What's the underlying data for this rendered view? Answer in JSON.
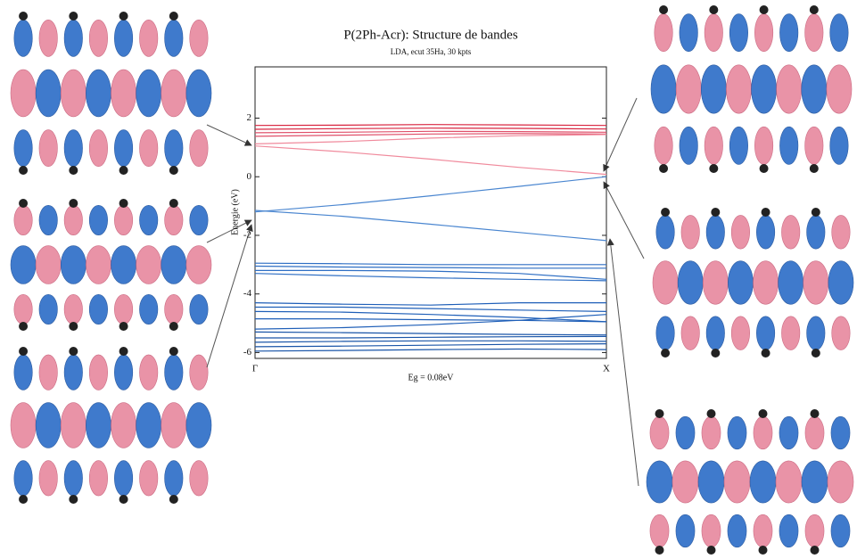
{
  "chart_data": {
    "type": "line",
    "title": "P(2Ph-Acr): Structure de bandes",
    "subtitle": "LDA, ecut 35Ha, 30 kpts",
    "y_label": "Energie (eV)",
    "x_label": "Eg = 0.08eV",
    "x": [
      0,
      0.25,
      0.5,
      0.75,
      1
    ],
    "xlim": [
      0,
      1
    ],
    "xticks": [
      {
        "value": 0,
        "label": "Γ"
      },
      {
        "value": 1,
        "label": "X"
      }
    ],
    "ylim": [
      -6.2,
      3.75
    ],
    "yticks": [
      2,
      0,
      -2,
      -4,
      -6
    ],
    "series": [
      {
        "color": "#d8243f",
        "values": [
          1.75,
          1.76,
          1.78,
          1.77,
          1.75
        ]
      },
      {
        "color": "#d8243f",
        "values": [
          1.62,
          1.64,
          1.66,
          1.65,
          1.63
        ]
      },
      {
        "color": "#e0506a",
        "values": [
          1.5,
          1.52,
          1.55,
          1.54,
          1.52
        ]
      },
      {
        "color": "#e0506a",
        "values": [
          1.38,
          1.42,
          1.46,
          1.47,
          1.46
        ]
      },
      {
        "color": "#f08a9c",
        "values": [
          1.12,
          1.2,
          1.32,
          1.4,
          1.44
        ]
      },
      {
        "color": "#f08a9c",
        "values": [
          1.05,
          0.85,
          0.6,
          0.32,
          0.08
        ]
      },
      {
        "color": "#4a86d0",
        "values": [
          -1.2,
          -0.95,
          -0.65,
          -0.33,
          0.0
        ]
      },
      {
        "color": "#4a86d0",
        "values": [
          -1.15,
          -1.35,
          -1.62,
          -1.9,
          -2.18
        ]
      },
      {
        "color": "#2f6fc4",
        "values": [
          -2.95,
          -2.97,
          -3.0,
          -3.0,
          -3.0
        ]
      },
      {
        "color": "#2f6fc4",
        "values": [
          -3.05,
          -3.08,
          -3.1,
          -3.12,
          -3.12
        ]
      },
      {
        "color": "#2f6fc4",
        "values": [
          -3.2,
          -3.2,
          -3.22,
          -3.3,
          -3.5
        ]
      },
      {
        "color": "#2f6fc4",
        "values": [
          -3.3,
          -3.38,
          -3.45,
          -3.5,
          -3.55
        ]
      },
      {
        "color": "#1f5fb8",
        "values": [
          -4.3,
          -4.35,
          -4.38,
          -4.3,
          -4.3
        ]
      },
      {
        "color": "#1f5fb8",
        "values": [
          -4.45,
          -4.45,
          -4.5,
          -4.55,
          -4.6
        ]
      },
      {
        "color": "#1f5fb8",
        "values": [
          -4.6,
          -4.62,
          -4.7,
          -4.8,
          -4.95
        ]
      },
      {
        "color": "#1f5fb8",
        "values": [
          -4.85,
          -4.85,
          -4.88,
          -4.9,
          -4.95
        ]
      },
      {
        "color": "#1f5fb8",
        "values": [
          -5.2,
          -5.15,
          -5.05,
          -4.9,
          -4.7
        ]
      },
      {
        "color": "#1a55a8",
        "values": [
          -5.3,
          -5.32,
          -5.35,
          -5.38,
          -5.4
        ]
      },
      {
        "color": "#1a55a8",
        "values": [
          -5.5,
          -5.5,
          -5.48,
          -5.46,
          -5.45
        ]
      },
      {
        "color": "#1a55a8",
        "values": [
          -5.65,
          -5.62,
          -5.6,
          -5.6,
          -5.62
        ]
      },
      {
        "color": "#1a55a8",
        "values": [
          -5.8,
          -5.78,
          -5.75,
          -5.72,
          -5.7
        ]
      },
      {
        "color": "#1a55a8",
        "values": [
          -5.95,
          -5.93,
          -5.9,
          -5.88,
          -5.9
        ]
      }
    ]
  }
}
